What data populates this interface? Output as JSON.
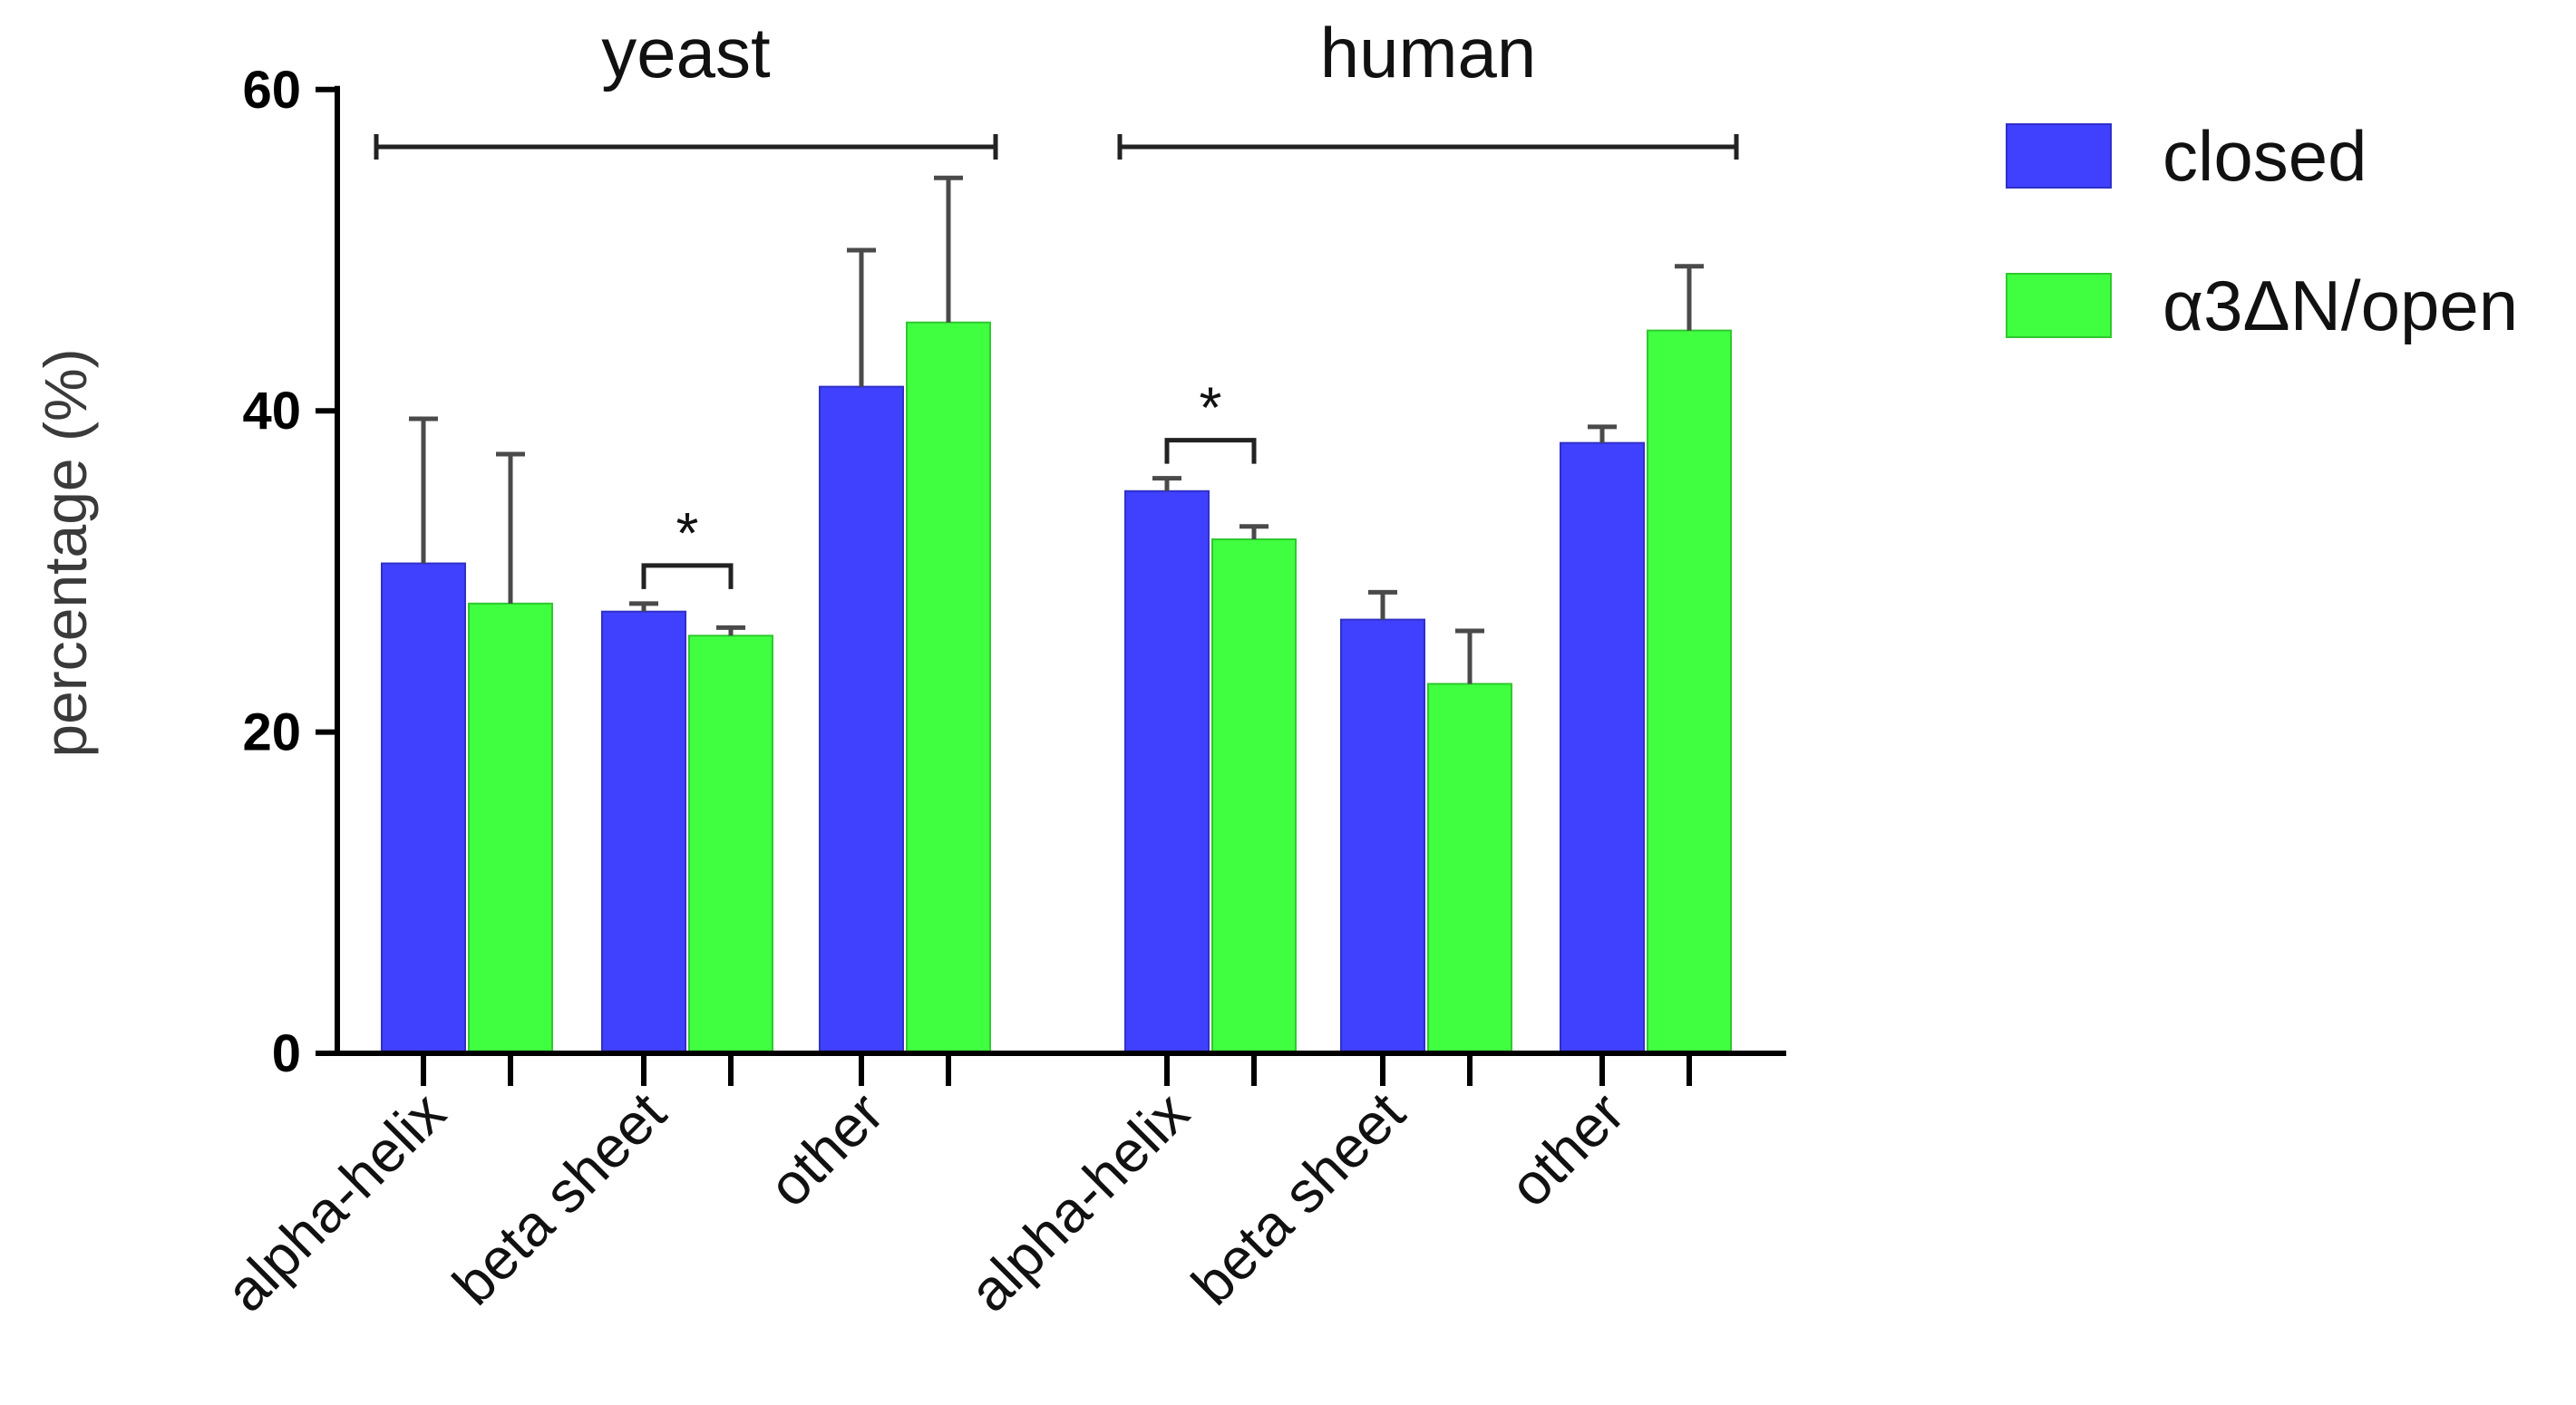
{
  "chart_data": {
    "type": "bar",
    "title": "",
    "xlabel": "",
    "ylabel": "percentage (%)",
    "ylim": [
      0,
      60
    ],
    "yticks": [
      0,
      20,
      40,
      60
    ],
    "groups": [
      "yeast",
      "human"
    ],
    "categories": [
      "alpha-helix",
      "beta sheet",
      "other",
      "alpha-helix",
      "beta sheet",
      "other"
    ],
    "category_group": [
      "yeast",
      "yeast",
      "yeast",
      "human",
      "human",
      "human"
    ],
    "series": [
      {
        "name": "closed",
        "color": "#4040ff",
        "values": [
          30.5,
          27.5,
          41.5,
          35.0,
          27.0,
          38.0
        ],
        "errors": [
          9.0,
          0.5,
          8.5,
          0.8,
          1.7,
          1.0
        ]
      },
      {
        "name": "α3ΔN/open",
        "color": "#40ff40",
        "values": [
          28.0,
          26.0,
          45.5,
          32.0,
          23.0,
          45.0
        ],
        "errors": [
          9.3,
          0.5,
          9.0,
          0.8,
          3.3,
          4.0
        ]
      }
    ],
    "significance": [
      {
        "category_index": 1,
        "label": "*"
      },
      {
        "category_index": 3,
        "label": "*"
      }
    ],
    "legend_position": "top-right",
    "grid": false
  }
}
